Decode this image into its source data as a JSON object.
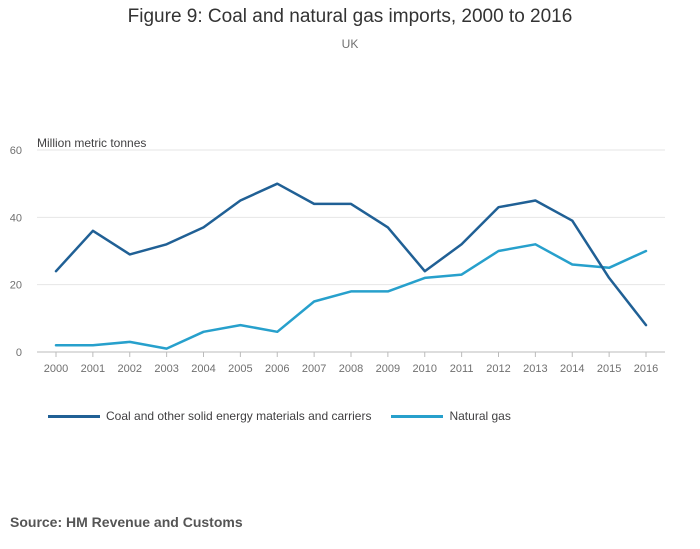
{
  "chart_data": {
    "type": "line",
    "title": "Figure 9: Coal and natural gas imports, 2000 to 2016",
    "subtitle": "UK",
    "ylabel": "Million metric tonnes",
    "xlabel": "",
    "ylim": [
      0,
      60
    ],
    "yticks": [
      0,
      20,
      40,
      60
    ],
    "categories": [
      "2000",
      "2001",
      "2002",
      "2003",
      "2004",
      "2005",
      "2006",
      "2007",
      "2008",
      "2009",
      "2010",
      "2011",
      "2012",
      "2013",
      "2014",
      "2015",
      "2016"
    ],
    "series": [
      {
        "name": "Coal and other solid energy materials and carriers",
        "color": "#206095",
        "values": [
          24,
          36,
          29,
          32,
          37,
          45,
          50,
          44,
          44,
          37,
          24,
          32,
          43,
          45,
          39,
          22,
          8
        ]
      },
      {
        "name": "Natural gas",
        "color": "#27a0cc",
        "values": [
          2,
          2,
          3,
          1,
          6,
          8,
          6,
          15,
          18,
          18,
          22,
          23,
          30,
          32,
          26,
          25,
          30
        ]
      }
    ],
    "grid": true,
    "legend_position": "bottom-left"
  },
  "source": "Source: HM Revenue and Customs"
}
